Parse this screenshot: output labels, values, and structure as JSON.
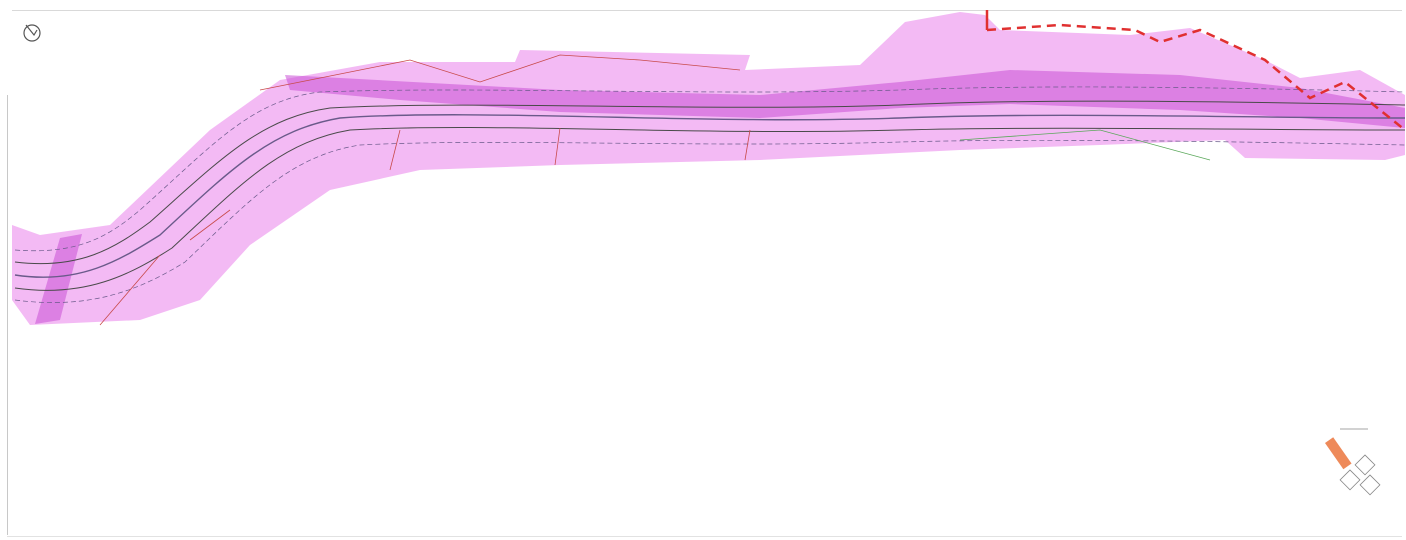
{
  "map": {
    "type": "engineering-plan-sheet",
    "north_arrow_icon": "north-arrow-icon",
    "colors": {
      "paper": "#ffffff",
      "corridor_fill": "#ee9df0",
      "band_fill": "#c850d6",
      "boundary_red": "#e03030",
      "centerline": "#6a5a8a",
      "edge_dark": "#4a4a4a",
      "parcel_green": "#5aa85a",
      "parcel_red": "#c84a4a",
      "key_highlight": "#ee8a5a"
    },
    "labels_legible": false,
    "has_dashed_boundary": true,
    "has_location_key": true
  }
}
